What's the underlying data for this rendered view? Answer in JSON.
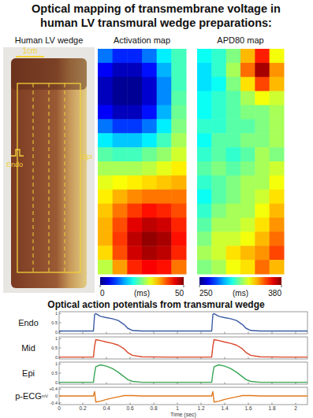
{
  "title_lines": [
    "Optical mapping of transmembrane voltage in",
    "human LV transmural wedge preparations:"
  ],
  "photo": {
    "title": "Human LV wedge",
    "scale_label": "1cm",
    "labels": [
      "Endo",
      "Epi"
    ]
  },
  "section_title": "Optical action potentials from transmural wedge",
  "chart_data": [
    {
      "type": "heatmap",
      "title": "Activation map",
      "colorbar_lim": [
        0,
        50
      ],
      "colorbar_ticks": [
        0,
        50
      ],
      "colorbar_label": "(ms)",
      "cells": [
        [
          12,
          8,
          8,
          12,
          18,
          22
        ],
        [
          6,
          3,
          3,
          7,
          15,
          22
        ],
        [
          3,
          1,
          1,
          4,
          13,
          22
        ],
        [
          3,
          1,
          1,
          4,
          13,
          23
        ],
        [
          6,
          3,
          3,
          7,
          15,
          24
        ],
        [
          12,
          9,
          9,
          12,
          18,
          25
        ],
        [
          18,
          16,
          16,
          18,
          22,
          27
        ],
        [
          23,
          22,
          22,
          24,
          26,
          29
        ],
        [
          27,
          27,
          27,
          28,
          30,
          32
        ],
        [
          30,
          31,
          32,
          33,
          34,
          35
        ],
        [
          32,
          35,
          37,
          38,
          38,
          38
        ],
        [
          34,
          38,
          41,
          43,
          42,
          40
        ],
        [
          35,
          40,
          45,
          47,
          46,
          42
        ],
        [
          35,
          41,
          47,
          49,
          48,
          43
        ],
        [
          33,
          40,
          46,
          48,
          47,
          42
        ],
        [
          28,
          36,
          42,
          44,
          43,
          38
        ]
      ]
    },
    {
      "type": "heatmap",
      "title": "APD80 map",
      "colorbar_lim": [
        250,
        380
      ],
      "colorbar_ticks": [
        250,
        380
      ],
      "colorbar_label": "(ms)",
      "cells": [
        [
          300,
          305,
          315,
          340,
          360,
          330
        ],
        [
          295,
          305,
          320,
          350,
          375,
          345
        ],
        [
          295,
          300,
          315,
          335,
          355,
          340
        ],
        [
          300,
          305,
          310,
          320,
          330,
          325
        ],
        [
          300,
          305,
          310,
          315,
          315,
          320
        ],
        [
          305,
          305,
          310,
          310,
          315,
          320
        ],
        [
          300,
          310,
          310,
          315,
          315,
          320
        ],
        [
          305,
          310,
          305,
          310,
          320,
          315
        ],
        [
          310,
          315,
          310,
          315,
          320,
          325
        ],
        [
          305,
          310,
          315,
          320,
          320,
          330
        ],
        [
          300,
          310,
          315,
          320,
          325,
          335
        ],
        [
          305,
          315,
          320,
          320,
          330,
          340
        ],
        [
          310,
          320,
          320,
          325,
          335,
          345
        ],
        [
          315,
          325,
          325,
          330,
          340,
          350
        ],
        [
          320,
          325,
          335,
          340,
          345,
          355
        ],
        [
          315,
          320,
          330,
          335,
          350,
          340
        ]
      ]
    },
    {
      "type": "line",
      "title": "Endo",
      "xlim": [
        0,
        2.1
      ],
      "ylim": [
        -0.1,
        1.1
      ],
      "yticks": [
        0,
        0.5,
        1
      ],
      "xticks": [
        0,
        0.2,
        0.4,
        0.6,
        0.8,
        1,
        1.2,
        1.4,
        1.6,
        1.8,
        2
      ],
      "tick_labels": "y",
      "x": [
        0,
        0.1,
        0.2,
        0.29,
        0.3,
        0.31,
        0.35,
        0.4,
        0.45,
        0.5,
        0.55,
        0.58,
        0.62,
        0.7,
        0.9,
        1.1,
        1.29,
        1.3,
        1.31,
        1.35,
        1.4,
        1.45,
        1.5,
        1.55,
        1.58,
        1.62,
        1.7,
        1.9,
        2.1
      ],
      "series": [
        {
          "color": "#3b5ba5",
          "values": [
            0.05,
            0.05,
            0.05,
            0.05,
            0.95,
            1.0,
            0.85,
            0.78,
            0.72,
            0.62,
            0.4,
            0.2,
            0.08,
            0.05,
            0.05,
            0.05,
            0.05,
            0.95,
            1.0,
            0.85,
            0.78,
            0.72,
            0.62,
            0.4,
            0.2,
            0.08,
            0.05,
            0.05,
            0.05
          ]
        }
      ]
    },
    {
      "type": "line",
      "title": "Mid",
      "xlim": [
        0,
        2.1
      ],
      "ylim": [
        -0.1,
        1.1
      ],
      "yticks": [
        0,
        0.5,
        1
      ],
      "xticks": [
        0,
        0.2,
        0.4,
        0.6,
        0.8,
        1,
        1.2,
        1.4,
        1.6,
        1.8,
        2
      ],
      "tick_labels": "y",
      "x": [
        0,
        0.1,
        0.2,
        0.29,
        0.3,
        0.31,
        0.35,
        0.4,
        0.45,
        0.5,
        0.55,
        0.58,
        0.62,
        0.7,
        0.9,
        1.1,
        1.29,
        1.3,
        1.31,
        1.35,
        1.4,
        1.45,
        1.5,
        1.55,
        1.58,
        1.62,
        1.7,
        1.9,
        2.1
      ],
      "series": [
        {
          "color": "#d9472b",
          "values": [
            0,
            0,
            0,
            0,
            0.6,
            0.95,
            0.9,
            0.82,
            0.75,
            0.65,
            0.45,
            0.25,
            0.1,
            0.02,
            0,
            0,
            0,
            0.6,
            0.95,
            0.9,
            0.82,
            0.75,
            0.65,
            0.45,
            0.25,
            0.1,
            0.02,
            0,
            0
          ]
        }
      ]
    },
    {
      "type": "line",
      "title": "Epi",
      "xlim": [
        0,
        2.1
      ],
      "ylim": [
        -0.1,
        1.1
      ],
      "yticks": [
        0,
        0.5,
        1
      ],
      "xticks": [
        0,
        0.2,
        0.4,
        0.6,
        0.8,
        1,
        1.2,
        1.4,
        1.6,
        1.8,
        2
      ],
      "tick_labels": "y",
      "x": [
        0,
        0.1,
        0.2,
        0.29,
        0.3,
        0.31,
        0.35,
        0.4,
        0.45,
        0.5,
        0.55,
        0.58,
        0.62,
        0.7,
        0.9,
        1.1,
        1.29,
        1.3,
        1.31,
        1.35,
        1.4,
        1.45,
        1.5,
        1.55,
        1.58,
        1.62,
        1.7,
        1.9,
        2.1
      ],
      "series": [
        {
          "color": "#3aa655",
          "values": [
            0,
            0,
            0,
            0,
            0.5,
            0.85,
            0.95,
            0.88,
            0.75,
            0.55,
            0.3,
            0.15,
            0.05,
            0,
            0,
            0,
            0,
            0.5,
            0.85,
            0.95,
            0.88,
            0.75,
            0.55,
            0.3,
            0.15,
            0.05,
            0,
            0,
            0
          ]
        }
      ]
    },
    {
      "type": "line",
      "title": "p-ECG",
      "ylabel": "mV",
      "xlabel": "Time (sec)",
      "xlim": [
        0,
        2.1
      ],
      "ylim": [
        -0.5,
        0.5
      ],
      "yticks": [
        {
          "value": 0.4,
          "label": "+0.4"
        },
        0,
        -0.4
      ],
      "xticks": [
        0,
        0.2,
        0.4,
        0.6,
        0.8,
        1,
        1.2,
        1.4,
        1.6,
        1.8,
        2
      ],
      "tick_labels": true,
      "x": [
        0,
        0.1,
        0.2,
        0.29,
        0.3,
        0.31,
        0.35,
        0.4,
        0.45,
        0.5,
        0.55,
        0.58,
        0.62,
        0.7,
        0.9,
        1.1,
        1.29,
        1.3,
        1.31,
        1.35,
        1.4,
        1.45,
        1.5,
        1.55,
        1.58,
        1.62,
        1.7,
        1.9,
        2.1
      ],
      "series": [
        {
          "color": "#e07a1f",
          "values": [
            0,
            0,
            0,
            0,
            0.25,
            -0.35,
            -0.3,
            -0.2,
            -0.12,
            -0.05,
            0.02,
            0.03,
            0.02,
            0,
            0,
            0,
            0,
            0.25,
            -0.35,
            -0.3,
            -0.2,
            -0.12,
            -0.05,
            0.02,
            0.03,
            0.02,
            0,
            0,
            0
          ]
        }
      ]
    }
  ]
}
